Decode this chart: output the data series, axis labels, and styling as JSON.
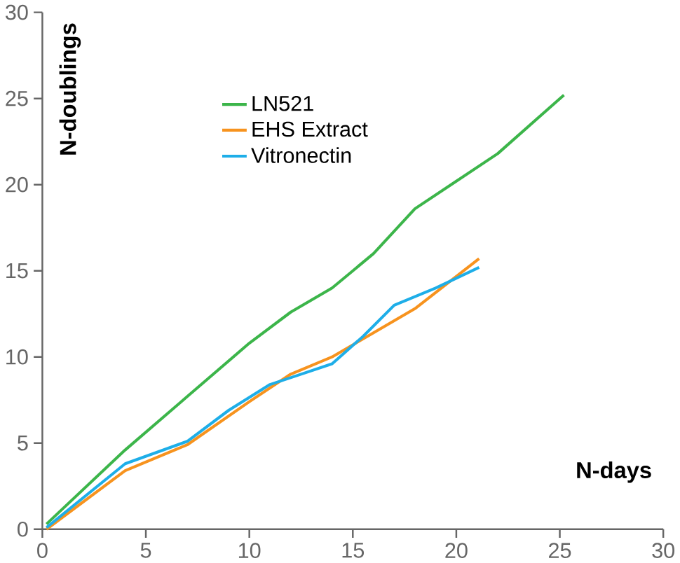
{
  "chart_data": {
    "type": "line",
    "xlabel": "N-days",
    "ylabel": "N-doublings",
    "xlim": [
      0,
      30
    ],
    "ylim": [
      0,
      30
    ],
    "xticks": [
      0,
      5,
      10,
      15,
      20,
      25,
      30
    ],
    "yticks": [
      0,
      5,
      10,
      15,
      20,
      25,
      30
    ],
    "grid": false,
    "legend": "top",
    "marker": "none",
    "line_style": "solid",
    "series": [
      {
        "name": "LN521",
        "color": "#3cb54a",
        "x": [
          0.2,
          4,
          7,
          10,
          12,
          14,
          15,
          16,
          18,
          20,
          22,
          25.2
        ],
        "values": [
          0.3,
          4.6,
          7.7,
          10.8,
          12.6,
          14,
          15,
          16,
          18.6,
          20.2,
          21.8,
          25.2
        ]
      },
      {
        "name": "EHS Extract",
        "color": "#f7931e",
        "x": [
          0.2,
          4,
          7,
          10,
          12,
          14,
          16,
          18,
          21.1
        ],
        "values": [
          0,
          3.4,
          4.9,
          7.4,
          9,
          10,
          11.4,
          12.8,
          15.7
        ]
      },
      {
        "name": "Vitronectin",
        "color": "#1eaee8",
        "x": [
          0.2,
          4,
          7,
          9,
          11,
          12.5,
          14,
          15.5,
          17,
          19,
          21.1
        ],
        "values": [
          0.1,
          3.8,
          5.1,
          6.9,
          8.4,
          9,
          9.6,
          11.2,
          13,
          14,
          15.2
        ]
      }
    ]
  }
}
